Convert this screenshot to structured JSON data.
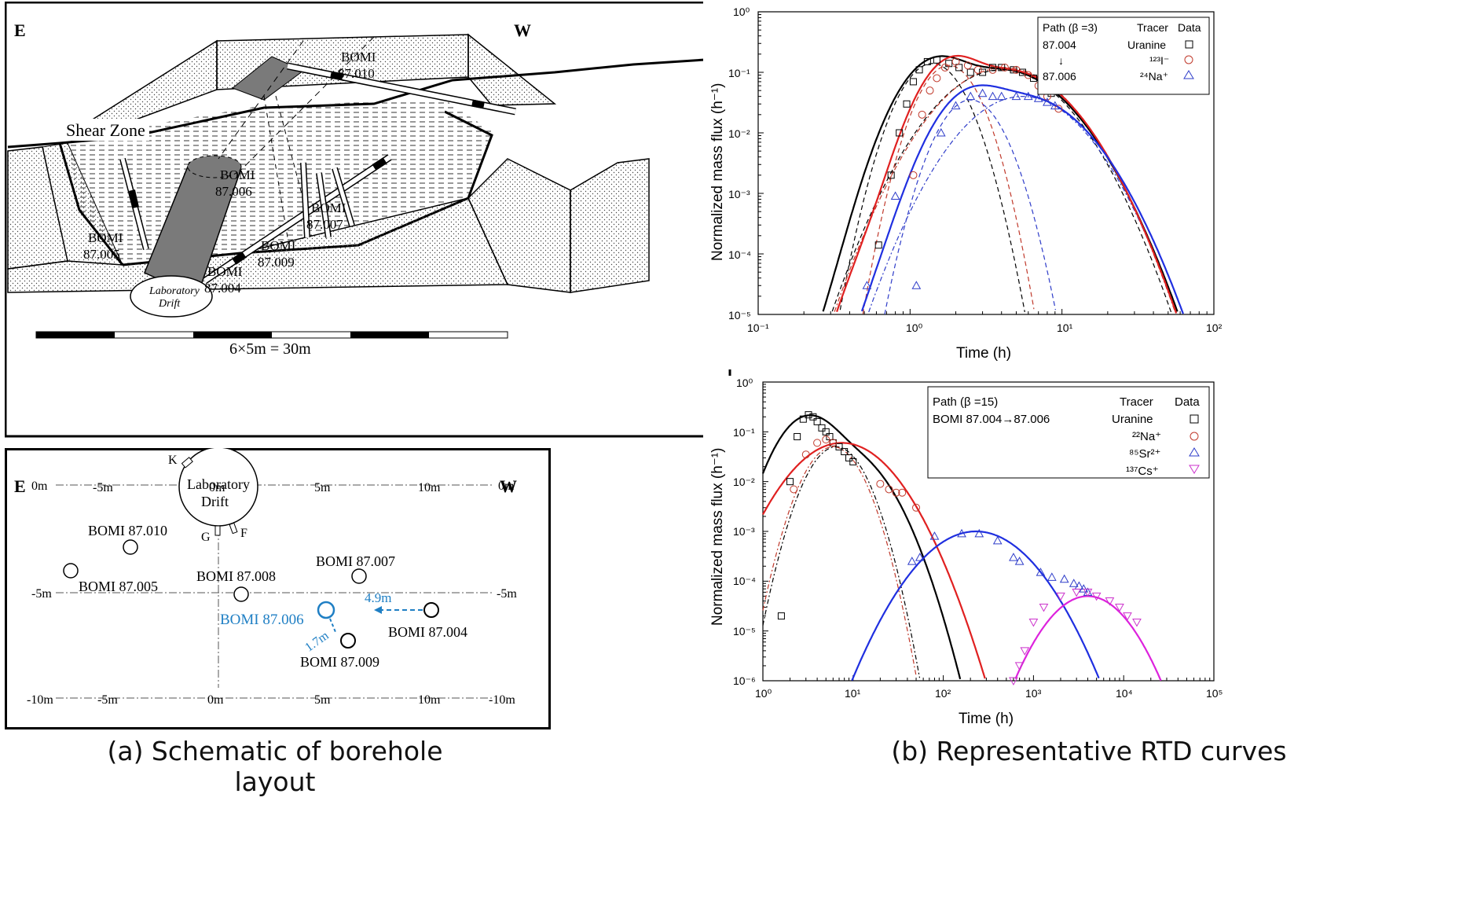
{
  "figure": {
    "caption_a": "(a) Schematic of borehole layout",
    "caption_b": "(b) Representative RTD curves"
  },
  "schematic_top": {
    "east": "E",
    "west": "W",
    "shear_zone": "Shear Zone",
    "drift_label_1": "Laboratory",
    "drift_label_2": "Drift",
    "scale_label": "6×5m = 30m",
    "boreholes": [
      {
        "line1": "BOMI",
        "line2": "87.010"
      },
      {
        "line1": "BOMI",
        "line2": "87.006"
      },
      {
        "line1": "BOMI",
        "line2": "87.007"
      },
      {
        "line1": "BOMI",
        "line2": "87.005"
      },
      {
        "line1": "BOMI",
        "line2": "87.009"
      },
      {
        "line1": "BOMI",
        "line2": "87.004"
      }
    ]
  },
  "plan_view": {
    "east": "E",
    "west": "W",
    "x_ticks_top": [
      "-5m",
      "0m",
      "5m",
      "10m"
    ],
    "x_ticks_bottom": [
      "-10m",
      "-5m",
      "0m",
      "5m",
      "10m",
      "-10m"
    ],
    "y_left": [
      "0m",
      "-5m"
    ],
    "y_right": [
      "0m",
      "-5m"
    ],
    "drift_1": "Laboratory",
    "drift_2": "Drift",
    "k": "K",
    "g": "G",
    "f": "F",
    "labels": {
      "b010": "BOMI 87.010",
      "b005": "BOMI 87.005",
      "b008": "BOMI 87.008",
      "b007": "BOMI 87.007",
      "b006": "BOMI 87.006",
      "b004": "BOMI 87.004",
      "b009": "BOMI 87.009",
      "d49": "4.9m",
      "d17": "1.7m"
    },
    "highlight_color": "#1f7fc4"
  },
  "plot1": {
    "ylabel": "Normalized mass flux (h⁻¹)",
    "xlabel": "Time (h)",
    "xticks": [
      "10⁻¹",
      "10⁰",
      "10¹",
      "10²"
    ],
    "yticks": [
      "10⁰",
      "10⁻¹",
      "10⁻²",
      "10⁻³",
      "10⁻⁴",
      "10⁻⁵"
    ],
    "legend": {
      "h1": "Path (β =3)",
      "h2": "Tracer",
      "h3": "Data",
      "from": "87.004",
      "arrow": "↓",
      "to": "87.006",
      "t1": "Uranine",
      "t2": "¹²³I⁻",
      "t3": "²⁴Na⁺"
    }
  },
  "plot2": {
    "ylabel": "Normalized mass flux (h⁻¹)",
    "xlabel": "Time (h)",
    "xticks": [
      "10⁰",
      "10¹",
      "10²",
      "10³",
      "10⁴",
      "10⁵"
    ],
    "yticks": [
      "10⁰",
      "10⁻¹",
      "10⁻²",
      "10⁻³",
      "10⁻⁴",
      "10⁻⁵",
      "10⁻⁶"
    ],
    "legend": {
      "h1": "Path (β =15)",
      "h2": "Tracer",
      "h3": "Data",
      "path": "BOMI 87.004→87.006",
      "t1": "Uranine",
      "t2": "²²Na⁺",
      "t3": "⁸⁵Sr²⁺",
      "t4": "¹³⁷Cs⁺"
    }
  },
  "chart_data": [
    {
      "type": "line",
      "xscale": "log",
      "yscale": "log",
      "xlim": [
        0.1,
        100
      ],
      "ylim": [
        1e-05,
        1
      ],
      "xlabel": "Time (h)",
      "ylabel": "Normalized mass flux (h⁻¹)",
      "series": [
        {
          "name": "Uranine",
          "color": "#000000",
          "marker": "square",
          "x": [
            0.62,
            0.75,
            0.85,
            0.95,
            1.05,
            1.15,
            1.3,
            1.5,
            1.8,
            2.1,
            2.5,
            3.0,
            3.5,
            4.0,
            4.8,
            5.5,
            6.5,
            7.5,
            8.5
          ],
          "y": [
            0.00014,
            0.002,
            0.01,
            0.03,
            0.07,
            0.11,
            0.15,
            0.16,
            0.14,
            0.12,
            0.1,
            0.1,
            0.12,
            0.12,
            0.11,
            0.1,
            0.08,
            0.06,
            0.045
          ]
        },
        {
          "name": "¹²³I⁻",
          "color": "#c0392b",
          "marker": "circle",
          "x": [
            1.05,
            1.2,
            1.35,
            1.5,
            1.7,
            2.0,
            2.4,
            2.8,
            3.5,
            4.2,
            5.0,
            6.0,
            7.0,
            8.0,
            9.5
          ],
          "y": [
            0.002,
            0.02,
            0.05,
            0.08,
            0.12,
            0.15,
            0.13,
            0.11,
            0.11,
            0.12,
            0.11,
            0.09,
            0.06,
            0.04,
            0.025
          ]
        },
        {
          "name": "²⁴Na⁺",
          "color": "#2e3cc9",
          "marker": "triangle",
          "x": [
            0.52,
            0.8,
            1.1,
            1.6,
            2.0,
            2.5,
            3.0,
            3.5,
            4.0,
            5.0,
            6.0,
            7.0,
            8.0,
            9.0
          ],
          "y": [
            3e-05,
            0.0009,
            3e-05,
            0.01,
            0.028,
            0.04,
            0.045,
            0.04,
            0.04,
            0.04,
            0.04,
            0.037,
            0.032,
            0.028
          ]
        }
      ]
    },
    {
      "type": "line",
      "xscale": "log",
      "yscale": "log",
      "xlim": [
        1,
        100000
      ],
      "ylim": [
        1e-06,
        1
      ],
      "xlabel": "Time (h)",
      "ylabel": "Normalized mass flux (h⁻¹)",
      "series": [
        {
          "name": "Uranine",
          "color": "#000000",
          "marker": "square",
          "x": [
            1.6,
            2.0,
            2.4,
            2.8,
            3.2,
            3.6,
            4.0,
            4.5,
            5.0,
            5.5,
            6.0,
            7.0,
            8.0,
            9.0,
            10.0
          ],
          "y": [
            2e-05,
            0.01,
            0.08,
            0.18,
            0.22,
            0.2,
            0.16,
            0.12,
            0.1,
            0.08,
            0.06,
            0.05,
            0.04,
            0.03,
            0.025
          ]
        },
        {
          "name": "²²Na⁺",
          "color": "#c0392b",
          "marker": "circle",
          "x": [
            2.2,
            3.0,
            4.0,
            5.0,
            6.0,
            20,
            25,
            30,
            35,
            50
          ],
          "y": [
            0.007,
            0.035,
            0.06,
            0.07,
            0.06,
            0.009,
            0.007,
            0.006,
            0.006,
            0.003
          ]
        },
        {
          "name": "⁸⁵Sr²⁺",
          "color": "#2e3cc9",
          "marker": "triangle",
          "x": [
            45,
            55,
            80,
            160,
            250,
            400,
            600,
            700,
            1200,
            1600,
            2200,
            2800,
            3200,
            3600,
            4000
          ],
          "y": [
            0.00025,
            0.0003,
            0.0008,
            0.0009,
            0.0009,
            0.00065,
            0.0003,
            0.00025,
            0.00015,
            0.00012,
            0.00011,
            9e-05,
            8e-05,
            7e-05,
            6e-05
          ]
        },
        {
          "name": "¹³⁷Cs⁺",
          "color": "#cc33cc",
          "marker": "triangle-down",
          "x": [
            600,
            700,
            800,
            1000,
            1300,
            2000,
            3000,
            4000,
            5000,
            7000,
            9000,
            11000,
            14000
          ],
          "y": [
            1e-06,
            2e-06,
            4e-06,
            1.5e-05,
            3e-05,
            5e-05,
            6e-05,
            6e-05,
            5e-05,
            4e-05,
            3e-05,
            2e-05,
            1.5e-05
          ]
        }
      ]
    }
  ]
}
